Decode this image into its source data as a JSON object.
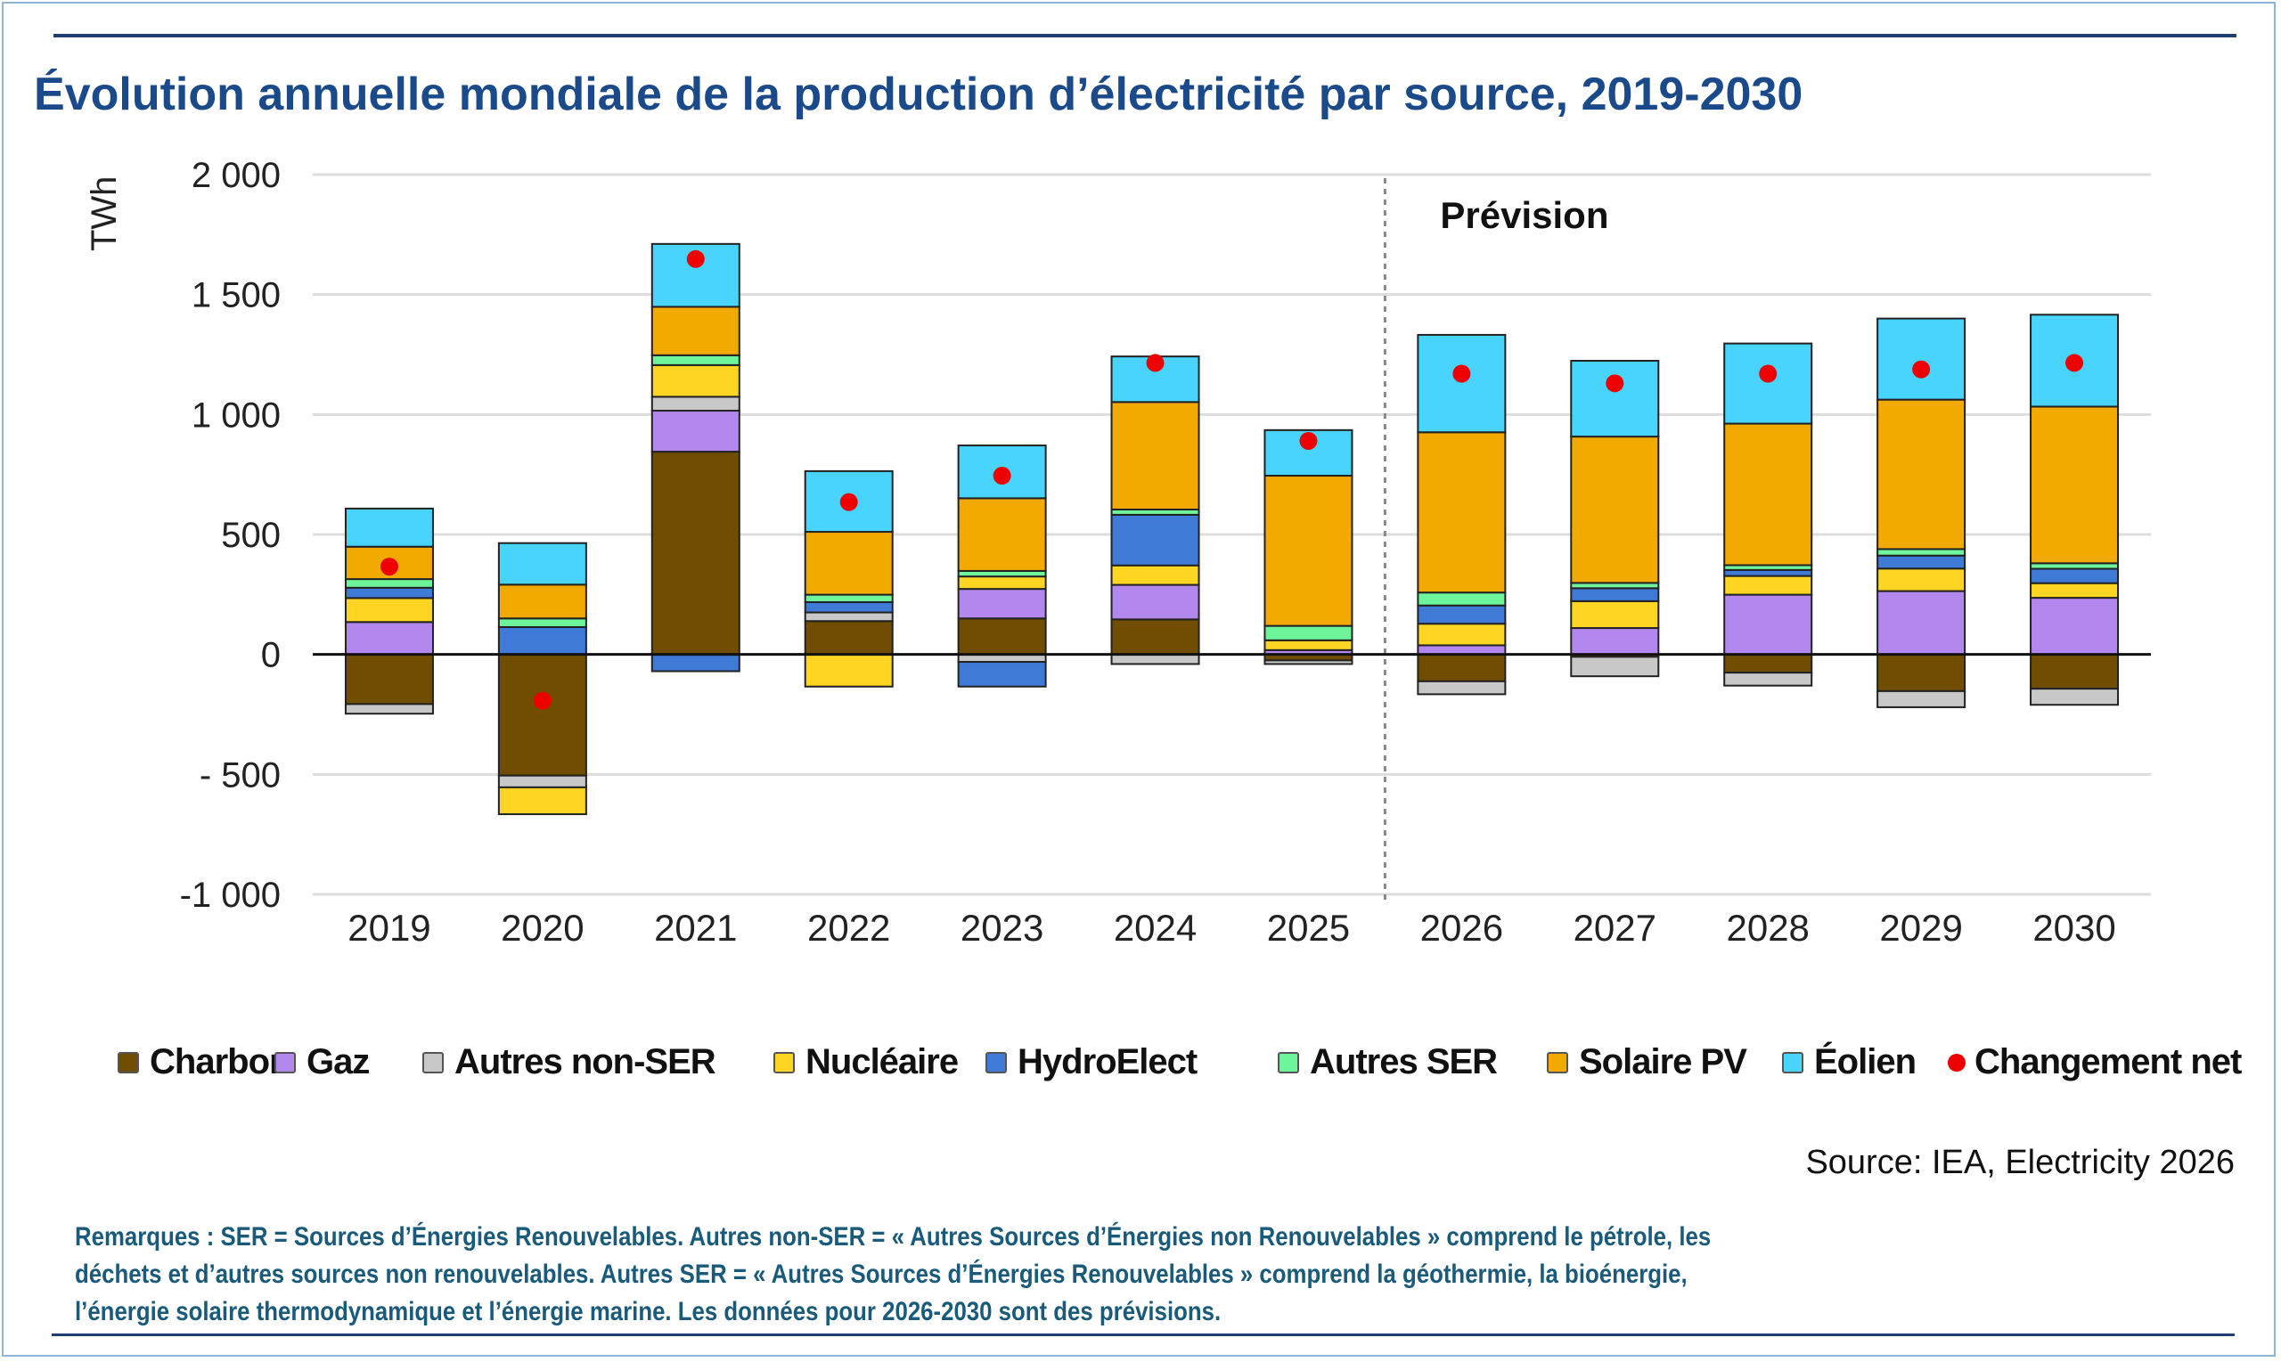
{
  "title": "Évolution annuelle mondiale de la production d’électricité par source, 2019-2030",
  "source": "Source: IEA, Electricity 2026",
  "notes": [
    "Remarques : SER = Sources d’Énergies Renouvelables. Autres non-SER = « Autres Sources d’Énergies non Renouvelables » comprend le pétrole, les",
    "déchets et d’autres sources non renouvelables. Autres SER = « Autres Sources d’Énergies Renouvelables » comprend la géothermie, la bioénergie,",
    "l’énergie solaire thermodynamique et l’énergie marine. Les données pour 2026-2030  sont des prévisions."
  ],
  "chart_data": {
    "type": "bar",
    "stacked": true,
    "title": "Évolution annuelle mondiale de la production d’électricité par source, 2019-2030",
    "ylabel": "TWh",
    "xlabel": "",
    "ylim": [
      -1000,
      2000
    ],
    "yticks": [
      2000,
      1500,
      1000,
      500,
      0,
      -500,
      -1000
    ],
    "ytick_labels": [
      "2 000",
      "1 500",
      "1 000",
      "500",
      "0",
      "- 500",
      "-1 000"
    ],
    "grid": true,
    "legend_position": "bottom",
    "annotation": "Prévision",
    "forecast_start": "2026",
    "categories": [
      "2019",
      "2020",
      "2021",
      "2022",
      "2023",
      "2024",
      "2025",
      "2026",
      "2027",
      "2028",
      "2029",
      "2030"
    ],
    "series": [
      {
        "name": "Charbon",
        "color": "#704d00",
        "values": [
          -207,
          -505,
          845,
          139,
          150,
          146,
          -25,
          -112,
          -10,
          -76,
          -153,
          -143
        ]
      },
      {
        "name": "Gaz",
        "color": "#b388ee",
        "values": [
          135,
          0,
          171,
          0,
          123,
          144,
          18,
          38,
          110,
          249,
          264,
          236
        ]
      },
      {
        "name": "Autres non-SER",
        "color": "#c8c8c8",
        "values": [
          -40,
          -49,
          58,
          36,
          -31,
          -40,
          -15,
          -54,
          -81,
          -54,
          -67,
          -67
        ]
      },
      {
        "name": "Nucléaire",
        "color": "#fdd522",
        "values": [
          100,
          -112,
          132,
          -134,
          52,
          81,
          41,
          90,
          112,
          78,
          94,
          61
        ]
      },
      {
        "name": "HydroElect",
        "color": "#3f7ad6",
        "values": [
          43,
          114,
          -70,
          43,
          -103,
          211,
          0,
          76,
          54,
          25,
          54,
          60
        ]
      },
      {
        "name": "Autres SER",
        "color": "#6ef59b",
        "values": [
          36,
          36,
          41,
          31,
          23,
          22,
          60,
          54,
          22,
          20,
          27,
          23
        ]
      },
      {
        "name": "Solaire PV",
        "color": "#f2a900",
        "values": [
          135,
          141,
          202,
          262,
          303,
          448,
          626,
          668,
          610,
          590,
          623,
          653
        ]
      },
      {
        "name": "Éolien",
        "color": "#48d4fc",
        "values": [
          159,
          173,
          262,
          253,
          220,
          190,
          190,
          406,
          316,
          334,
          338,
          383
        ]
      }
    ],
    "net_change": {
      "name": "Changement net",
      "color": "#ee0000",
      "values": [
        366,
        -193,
        1648,
        635,
        745,
        1215,
        890,
        1170,
        1130,
        1170,
        1188,
        1215
      ]
    }
  }
}
